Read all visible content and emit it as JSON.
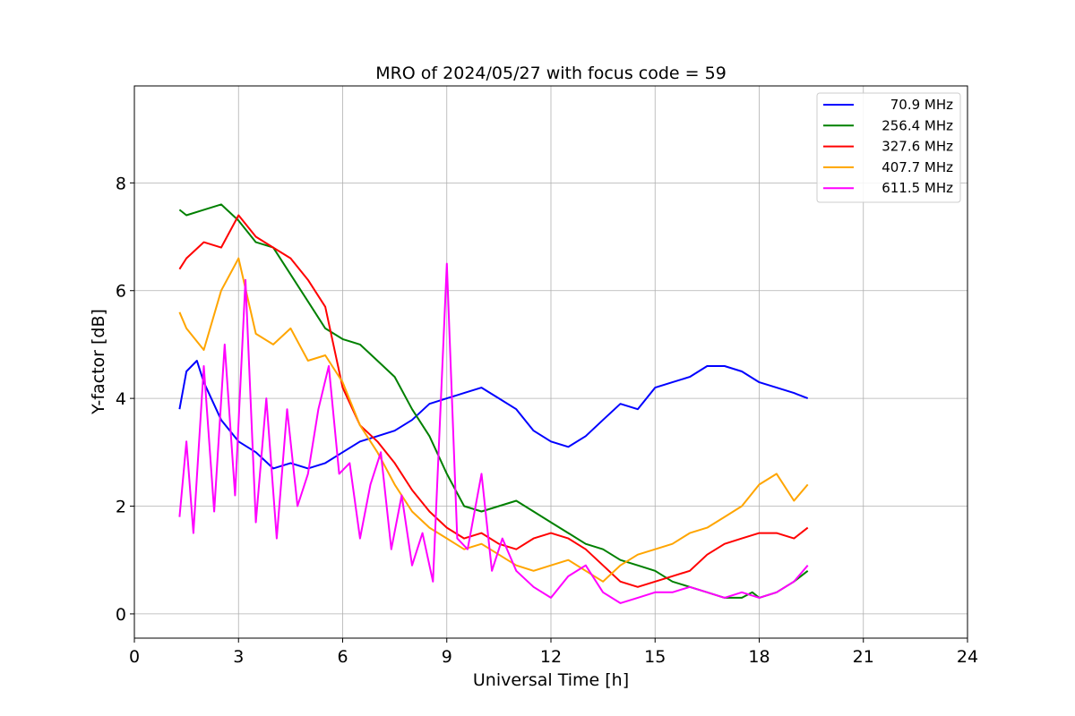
{
  "chart_data": {
    "type": "line",
    "title": "MRO of 2024/05/27 with focus code = 59",
    "xlabel": "Universal Time [h]",
    "ylabel": "Y-factor [dB]",
    "xlim": [
      0,
      24
    ],
    "ylim": [
      -0.45,
      9.8
    ],
    "xticks": [
      0,
      3,
      6,
      9,
      12,
      15,
      18,
      21,
      24
    ],
    "yticks": [
      0,
      2,
      4,
      6,
      8
    ],
    "grid": true,
    "legend_position": "top-right",
    "series": [
      {
        "name": "70.9 MHz",
        "color": "#0000ff",
        "x": [
          1.3,
          1.5,
          1.8,
          2.0,
          2.5,
          3.0,
          3.5,
          4.0,
          4.5,
          5.0,
          5.5,
          6.0,
          6.5,
          7.0,
          7.5,
          8.0,
          8.5,
          9.0,
          9.5,
          10.0,
          10.5,
          11.0,
          11.5,
          12.0,
          12.5,
          13.0,
          13.5,
          14.0,
          14.5,
          15.0,
          15.5,
          16.0,
          16.5,
          17.0,
          17.5,
          18.0,
          18.5,
          19.0,
          19.4
        ],
        "y": [
          3.8,
          4.5,
          4.7,
          4.3,
          3.6,
          3.2,
          3.0,
          2.7,
          2.8,
          2.7,
          2.8,
          3.0,
          3.2,
          3.3,
          3.4,
          3.6,
          3.9,
          4.0,
          4.1,
          4.2,
          4.0,
          3.8,
          3.4,
          3.2,
          3.1,
          3.3,
          3.6,
          3.9,
          3.8,
          4.2,
          4.3,
          4.4,
          4.6,
          4.6,
          4.5,
          4.3,
          4.2,
          4.1,
          4.0
        ]
      },
      {
        "name": "256.4 MHz",
        "color": "#008000",
        "x": [
          1.3,
          1.5,
          2.0,
          2.5,
          3.0,
          3.5,
          4.0,
          4.5,
          5.0,
          5.5,
          6.0,
          6.5,
          7.0,
          7.5,
          8.0,
          8.5,
          9.0,
          9.5,
          10.0,
          10.5,
          11.0,
          11.5,
          12.0,
          12.5,
          13.0,
          13.5,
          14.0,
          14.5,
          15.0,
          15.5,
          16.0,
          16.5,
          17.0,
          17.5,
          17.8,
          18.0,
          18.5,
          19.0,
          19.4
        ],
        "y": [
          7.5,
          7.4,
          7.5,
          7.6,
          7.3,
          6.9,
          6.8,
          6.3,
          5.8,
          5.3,
          5.1,
          5.0,
          4.7,
          4.4,
          3.8,
          3.3,
          2.6,
          2.0,
          1.9,
          2.0,
          2.1,
          1.9,
          1.7,
          1.5,
          1.3,
          1.2,
          1.0,
          0.9,
          0.8,
          0.6,
          0.5,
          0.4,
          0.3,
          0.3,
          0.4,
          0.3,
          0.4,
          0.6,
          0.8
        ]
      },
      {
        "name": "327.6 MHz",
        "color": "#ff0000",
        "x": [
          1.3,
          1.5,
          2.0,
          2.5,
          3.0,
          3.5,
          4.0,
          4.5,
          5.0,
          5.5,
          6.0,
          6.5,
          7.0,
          7.5,
          8.0,
          8.5,
          9.0,
          9.5,
          10.0,
          10.5,
          11.0,
          11.5,
          12.0,
          12.5,
          13.0,
          13.5,
          14.0,
          14.5,
          15.0,
          15.5,
          16.0,
          16.5,
          17.0,
          17.5,
          18.0,
          18.5,
          19.0,
          19.4
        ],
        "y": [
          6.4,
          6.6,
          6.9,
          6.8,
          7.4,
          7.0,
          6.8,
          6.6,
          6.2,
          5.7,
          4.2,
          3.5,
          3.2,
          2.8,
          2.3,
          1.9,
          1.6,
          1.4,
          1.5,
          1.3,
          1.2,
          1.4,
          1.5,
          1.4,
          1.2,
          0.9,
          0.6,
          0.5,
          0.6,
          0.7,
          0.8,
          1.1,
          1.3,
          1.4,
          1.5,
          1.5,
          1.4,
          1.6
        ]
      },
      {
        "name": "407.7 MHz",
        "color": "#ffa500",
        "x": [
          1.3,
          1.5,
          2.0,
          2.5,
          3.0,
          3.5,
          4.0,
          4.5,
          5.0,
          5.5,
          6.0,
          6.5,
          7.0,
          7.5,
          8.0,
          8.5,
          9.0,
          9.5,
          10.0,
          10.5,
          11.0,
          11.5,
          12.0,
          12.5,
          13.0,
          13.5,
          14.0,
          14.5,
          15.0,
          15.5,
          16.0,
          16.5,
          17.0,
          17.5,
          18.0,
          18.5,
          19.0,
          19.4
        ],
        "y": [
          5.6,
          5.3,
          4.9,
          6.0,
          6.6,
          5.2,
          5.0,
          5.3,
          4.7,
          4.8,
          4.3,
          3.5,
          3.0,
          2.4,
          1.9,
          1.6,
          1.4,
          1.2,
          1.3,
          1.1,
          0.9,
          0.8,
          0.9,
          1.0,
          0.8,
          0.6,
          0.9,
          1.1,
          1.2,
          1.3,
          1.5,
          1.6,
          1.8,
          2.0,
          2.4,
          2.6,
          2.1,
          2.4
        ]
      },
      {
        "name": "611.5 MHz",
        "color": "#ff00ff",
        "x": [
          1.3,
          1.5,
          1.7,
          2.0,
          2.3,
          2.6,
          2.9,
          3.2,
          3.5,
          3.8,
          4.1,
          4.4,
          4.7,
          5.0,
          5.3,
          5.6,
          5.9,
          6.2,
          6.5,
          6.8,
          7.1,
          7.4,
          7.7,
          8.0,
          8.3,
          8.6,
          9.0,
          9.3,
          9.6,
          10.0,
          10.3,
          10.6,
          11.0,
          11.5,
          12.0,
          12.5,
          13.0,
          13.5,
          14.0,
          14.5,
          15.0,
          15.5,
          16.0,
          16.5,
          17.0,
          17.5,
          18.0,
          18.5,
          19.0,
          19.4
        ],
        "y": [
          1.8,
          3.2,
          1.5,
          4.6,
          1.9,
          5.0,
          2.2,
          6.2,
          1.7,
          4.0,
          1.4,
          3.8,
          2.0,
          2.6,
          3.8,
          4.6,
          2.6,
          2.8,
          1.4,
          2.4,
          3.0,
          1.2,
          2.2,
          0.9,
          1.5,
          0.6,
          6.5,
          1.4,
          1.2,
          2.6,
          0.8,
          1.4,
          0.8,
          0.5,
          0.3,
          0.7,
          0.9,
          0.4,
          0.2,
          0.3,
          0.4,
          0.4,
          0.5,
          0.4,
          0.3,
          0.4,
          0.3,
          0.4,
          0.6,
          0.9
        ]
      }
    ]
  }
}
